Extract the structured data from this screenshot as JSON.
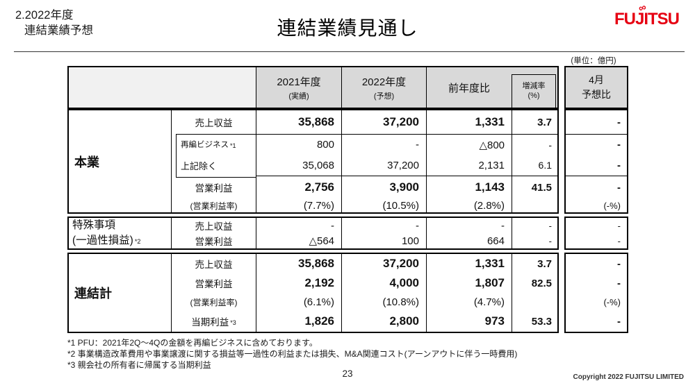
{
  "header": {
    "section_line1": "2.2022年度",
    "section_line2": "連結業績予想",
    "title": "連結業績見通し",
    "logo_text": "FUJITSU",
    "logo_swoosh": "∞",
    "unit_label": "(単位：億円)"
  },
  "table": {
    "col_2021": {
      "label": "2021年度",
      "sub": "(実績)"
    },
    "col_2022": {
      "label": "2022年度",
      "sub": "(予想)"
    },
    "col_yoy": "前年度比",
    "col_rate": {
      "label": "増減率",
      "sub": "(%)"
    },
    "col_april": {
      "line1": "4月",
      "line2": "予想比"
    }
  },
  "sections": {
    "main_business": {
      "label": "本業",
      "rows": [
        {
          "label": "売上収益",
          "note": "",
          "v2021": "35,868",
          "v2022": "37,200",
          "yoy": "1,331",
          "rate": "3.7",
          "april": "-"
        },
        {
          "label": "再編ビジネス",
          "note": "*1",
          "v2021": "800",
          "v2022": "-",
          "yoy": "△800",
          "rate": "-",
          "april": "-"
        },
        {
          "label": "上記除く",
          "note": "",
          "v2021": "35,068",
          "v2022": "37,200",
          "yoy": "2,131",
          "rate": "6.1",
          "april": "-"
        },
        {
          "label": "営業利益",
          "note": "",
          "v2021": "2,756",
          "v2022": "3,900",
          "yoy": "1,143",
          "rate": "41.5",
          "april": "-"
        },
        {
          "label": "(営業利益率)",
          "note": "",
          "v2021": "(7.7%)",
          "v2022": "(10.5%)",
          "yoy": "(2.8%)",
          "rate": "",
          "april": "(-%)"
        }
      ]
    },
    "special_items": {
      "label_line1": "特殊事項",
      "label_line2": "(一過性損益)",
      "label_note": "*2",
      "rows": [
        {
          "label": "売上収益",
          "v2021": "-",
          "v2022": "-",
          "yoy": "-",
          "rate": "-",
          "april": "-"
        },
        {
          "label": "営業利益",
          "v2021": "△564",
          "v2022": "100",
          "yoy": "664",
          "rate": "-",
          "april": "-"
        }
      ]
    },
    "consolidated": {
      "label": "連結計",
      "rows": [
        {
          "label": "売上収益",
          "note": "",
          "v2021": "35,868",
          "v2022": "37,200",
          "yoy": "1,331",
          "rate": "3.7",
          "april": "-"
        },
        {
          "label": "営業利益",
          "note": "",
          "v2021": "2,192",
          "v2022": "4,000",
          "yoy": "1,807",
          "rate": "82.5",
          "april": "-"
        },
        {
          "label": "(営業利益率)",
          "note": "",
          "v2021": "(6.1%)",
          "v2022": "(10.8%)",
          "yoy": "(4.7%)",
          "rate": "",
          "april": "(-%)"
        },
        {
          "label": "当期利益",
          "note": "*3",
          "v2021": "1,826",
          "v2022": "2,800",
          "yoy": "973",
          "rate": "53.3",
          "april": "-"
        }
      ]
    }
  },
  "footnotes": [
    "*1 PFU：2021年2Q～4Qの金額を再編ビジネスに含めております。",
    "*2 事業構造改革費用や事業譲渡に関する損益等一過性の利益または損失、M&A関連コスト(アーンアウトに伴う一時費用)",
    "*3 親会社の所有者に帰属する当期利益"
  ],
  "footer": {
    "page_number": "23",
    "copyright": "Copyright 2022 FUJITSU LIMITED"
  },
  "colors": {
    "brand_red": "#e60012",
    "header_bg": "#d9d9d9",
    "blank_header_bg": "#f1f1f1"
  }
}
